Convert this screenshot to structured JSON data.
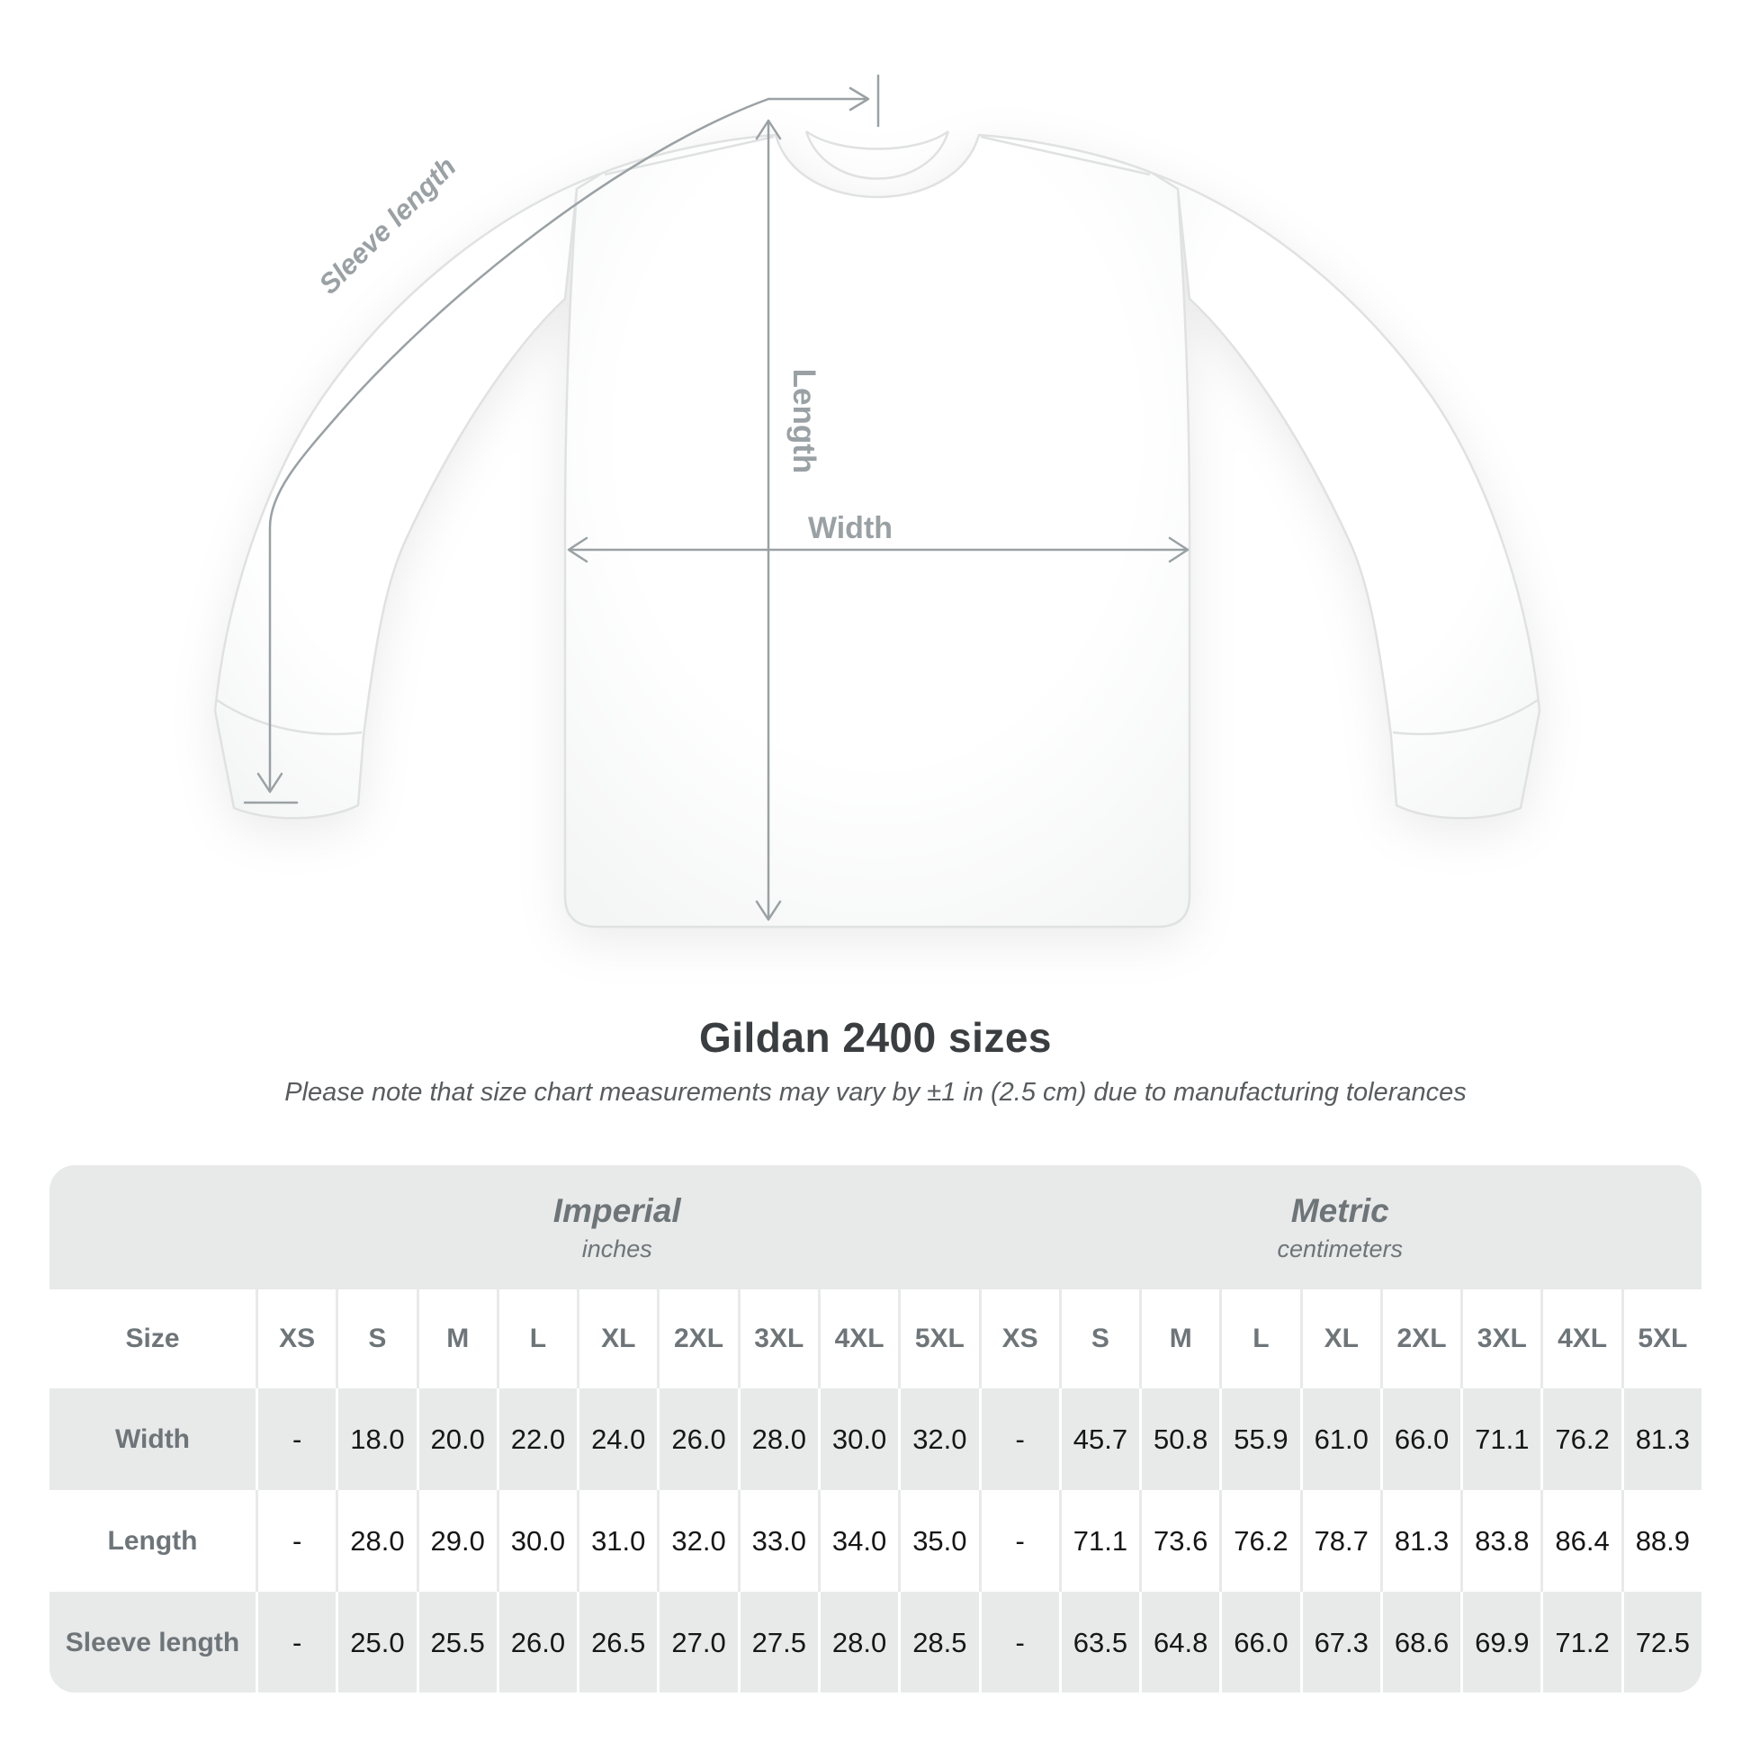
{
  "diagram": {
    "sleeve_length_label": "Sleeve length",
    "length_label": "Length",
    "width_label": "Width"
  },
  "title": "Gildan 2400 sizes",
  "subtitle": "Please note that size chart measurements may vary by ±1 in (2.5 cm) due to manufacturing tolerances",
  "table": {
    "size_header": "Size",
    "unit_groups": [
      {
        "label": "Imperial",
        "sublabel": "inches"
      },
      {
        "label": "Metric",
        "sublabel": "centimeters"
      }
    ],
    "sizes": [
      "XS",
      "S",
      "M",
      "L",
      "XL",
      "2XL",
      "3XL",
      "4XL",
      "5XL"
    ],
    "rows": [
      {
        "label": "Width",
        "imperial": [
          "-",
          "18.0",
          "20.0",
          "22.0",
          "24.0",
          "26.0",
          "28.0",
          "30.0",
          "32.0"
        ],
        "metric": [
          "-",
          "45.7",
          "50.8",
          "55.9",
          "61.0",
          "66.0",
          "71.1",
          "76.2",
          "81.3"
        ]
      },
      {
        "label": "Length",
        "imperial": [
          "-",
          "28.0",
          "29.0",
          "30.0",
          "31.0",
          "32.0",
          "33.0",
          "34.0",
          "35.0"
        ],
        "metric": [
          "-",
          "71.1",
          "73.6",
          "76.2",
          "78.7",
          "81.3",
          "83.8",
          "86.4",
          "88.9"
        ]
      },
      {
        "label": "Sleeve length",
        "imperial": [
          "-",
          "25.0",
          "25.5",
          "26.0",
          "26.5",
          "27.0",
          "27.5",
          "28.0",
          "28.5"
        ],
        "metric": [
          "-",
          "63.5",
          "64.8",
          "66.0",
          "67.3",
          "68.6",
          "69.9",
          "71.2",
          "72.5"
        ]
      }
    ]
  },
  "colors": {
    "table_gray": "#e8e9e9",
    "header_text_gray": "#6e7579",
    "value_text": "#161616",
    "annotation_gray": "#9aa1a4",
    "title_dark": "#3a3e40",
    "shirt_outline": "#e0e1e1"
  }
}
